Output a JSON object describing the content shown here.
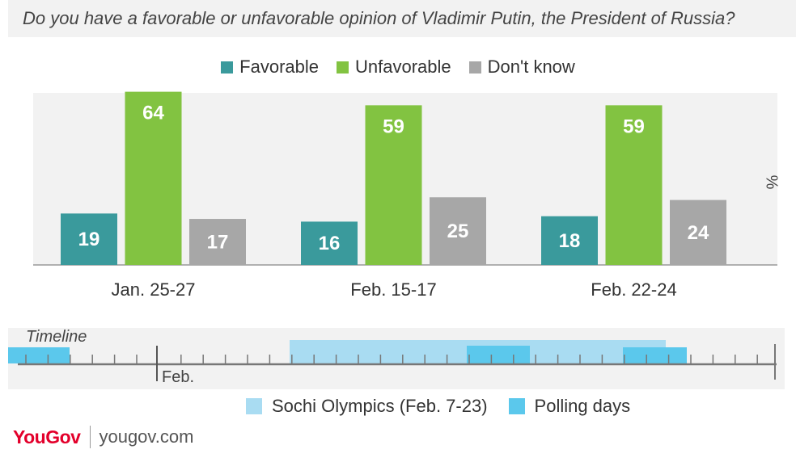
{
  "question": "Do you have a favorable or unfavorable opinion of Vladimir Putin, the President of Russia?",
  "chart_data": {
    "type": "bar",
    "categories": [
      "Jan. 25-27",
      "Feb. 15-17",
      "Feb. 22-24"
    ],
    "series": [
      {
        "name": "Favorable",
        "color": "#3a9a9c",
        "values": [
          19,
          16,
          18
        ]
      },
      {
        "name": "Unfavorable",
        "color": "#82c341",
        "values": [
          64,
          59,
          59
        ]
      },
      {
        "name": "Don't know",
        "color": "#a7a7a7",
        "values": [
          17,
          25,
          24
        ]
      }
    ],
    "ylabel": "%",
    "ylim": [
      0,
      70
    ],
    "legend": "top-center",
    "grid": false
  },
  "timeline": {
    "label": "Timeline",
    "month_label": "Feb.",
    "olympics_label": "Sochi Olympics (Feb. 7-23)",
    "olympics_color": "#a9dcf2",
    "polling_label": "Polling days",
    "polling_color": "#5bc8ec"
  },
  "brand": {
    "logo": "YouGov",
    "url": "yougov.com"
  }
}
